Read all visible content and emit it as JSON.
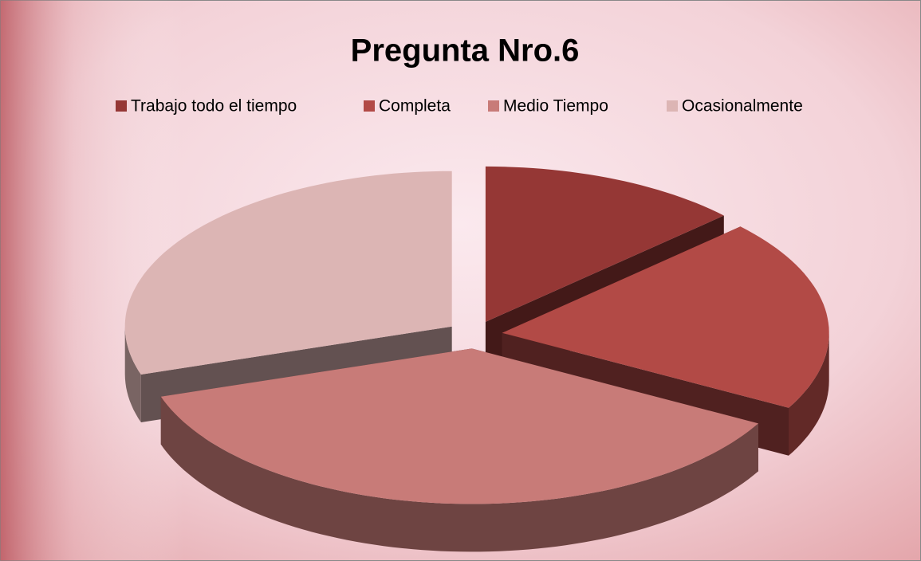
{
  "chart_data": {
    "type": "pie3d",
    "title": "Pregunta Nro.6",
    "categories": [
      "Trabajo todo el tiempo",
      "Completa",
      "Medio Tiempo",
      "Ocasionalmente"
    ],
    "values": [
      13,
      20,
      37,
      30
    ],
    "colors": [
      "#953735",
      "#b24a46",
      "#c87b78",
      "#dcb5b4"
    ],
    "legend": "top"
  }
}
